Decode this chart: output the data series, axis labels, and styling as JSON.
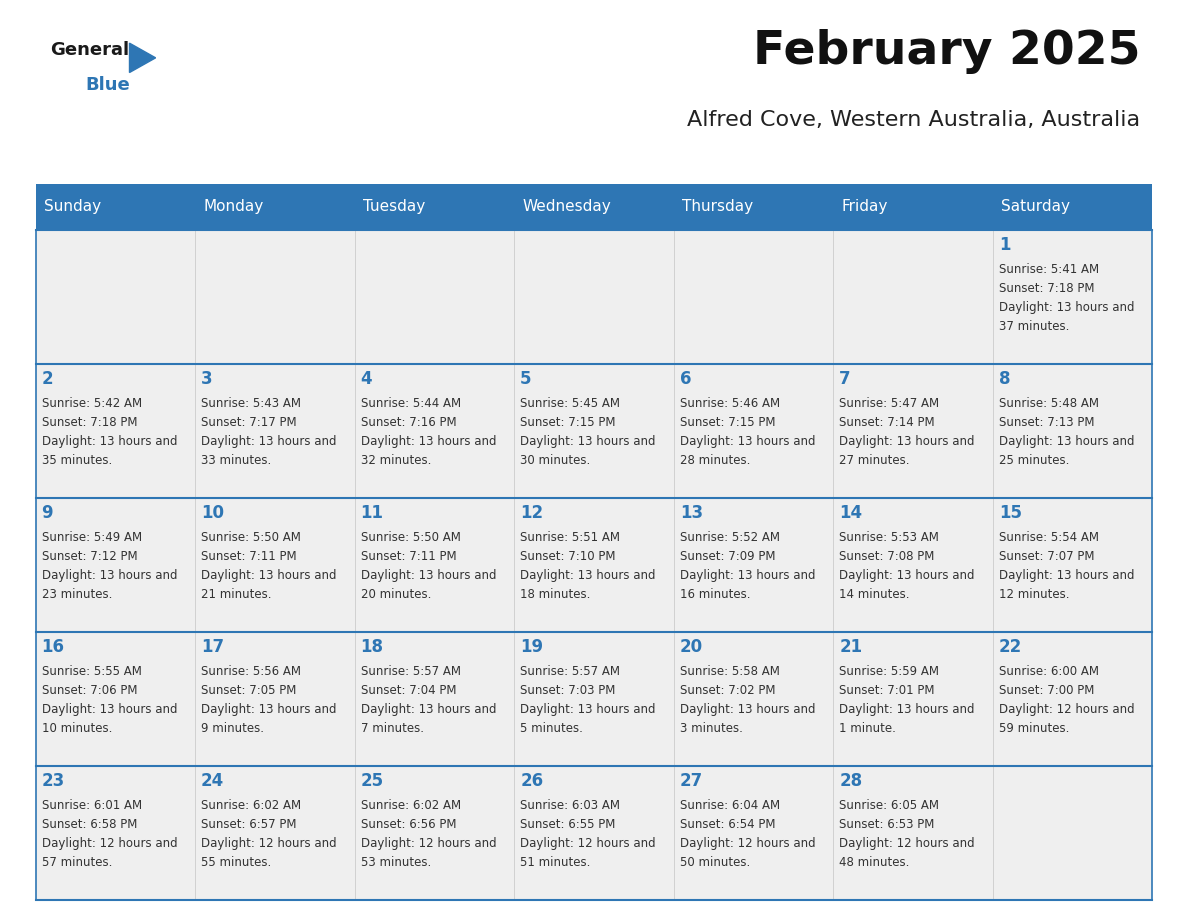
{
  "title": "February 2025",
  "subtitle": "Alfred Cove, Western Australia, Australia",
  "header_color": "#2E76B4",
  "header_text_color": "#FFFFFF",
  "day_names": [
    "Sunday",
    "Monday",
    "Tuesday",
    "Wednesday",
    "Thursday",
    "Friday",
    "Saturday"
  ],
  "bg_color": "#FFFFFF",
  "cell_bg": "#EFEFEF",
  "border_color": "#2E76B4",
  "day_num_color": "#2E76B4",
  "text_color": "#333333",
  "logo_general_color": "#1a1a1a",
  "logo_blue_color": "#2E76B4",
  "calendar": [
    [
      null,
      null,
      null,
      null,
      null,
      null,
      {
        "day": 1,
        "sunrise": "5:41 AM",
        "sunset": "7:18 PM",
        "daylight": "13 hours and 37 minutes"
      }
    ],
    [
      {
        "day": 2,
        "sunrise": "5:42 AM",
        "sunset": "7:18 PM",
        "daylight": "13 hours and 35 minutes"
      },
      {
        "day": 3,
        "sunrise": "5:43 AM",
        "sunset": "7:17 PM",
        "daylight": "13 hours and 33 minutes"
      },
      {
        "day": 4,
        "sunrise": "5:44 AM",
        "sunset": "7:16 PM",
        "daylight": "13 hours and 32 minutes"
      },
      {
        "day": 5,
        "sunrise": "5:45 AM",
        "sunset": "7:15 PM",
        "daylight": "13 hours and 30 minutes"
      },
      {
        "day": 6,
        "sunrise": "5:46 AM",
        "sunset": "7:15 PM",
        "daylight": "13 hours and 28 minutes"
      },
      {
        "day": 7,
        "sunrise": "5:47 AM",
        "sunset": "7:14 PM",
        "daylight": "13 hours and 27 minutes"
      },
      {
        "day": 8,
        "sunrise": "5:48 AM",
        "sunset": "7:13 PM",
        "daylight": "13 hours and 25 minutes"
      }
    ],
    [
      {
        "day": 9,
        "sunrise": "5:49 AM",
        "sunset": "7:12 PM",
        "daylight": "13 hours and 23 minutes"
      },
      {
        "day": 10,
        "sunrise": "5:50 AM",
        "sunset": "7:11 PM",
        "daylight": "13 hours and 21 minutes"
      },
      {
        "day": 11,
        "sunrise": "5:50 AM",
        "sunset": "7:11 PM",
        "daylight": "13 hours and 20 minutes"
      },
      {
        "day": 12,
        "sunrise": "5:51 AM",
        "sunset": "7:10 PM",
        "daylight": "13 hours and 18 minutes"
      },
      {
        "day": 13,
        "sunrise": "5:52 AM",
        "sunset": "7:09 PM",
        "daylight": "13 hours and 16 minutes"
      },
      {
        "day": 14,
        "sunrise": "5:53 AM",
        "sunset": "7:08 PM",
        "daylight": "13 hours and 14 minutes"
      },
      {
        "day": 15,
        "sunrise": "5:54 AM",
        "sunset": "7:07 PM",
        "daylight": "13 hours and 12 minutes"
      }
    ],
    [
      {
        "day": 16,
        "sunrise": "5:55 AM",
        "sunset": "7:06 PM",
        "daylight": "13 hours and 10 minutes"
      },
      {
        "day": 17,
        "sunrise": "5:56 AM",
        "sunset": "7:05 PM",
        "daylight": "13 hours and 9 minutes"
      },
      {
        "day": 18,
        "sunrise": "5:57 AM",
        "sunset": "7:04 PM",
        "daylight": "13 hours and 7 minutes"
      },
      {
        "day": 19,
        "sunrise": "5:57 AM",
        "sunset": "7:03 PM",
        "daylight": "13 hours and 5 minutes"
      },
      {
        "day": 20,
        "sunrise": "5:58 AM",
        "sunset": "7:02 PM",
        "daylight": "13 hours and 3 minutes"
      },
      {
        "day": 21,
        "sunrise": "5:59 AM",
        "sunset": "7:01 PM",
        "daylight": "13 hours and 1 minute"
      },
      {
        "day": 22,
        "sunrise": "6:00 AM",
        "sunset": "7:00 PM",
        "daylight": "12 hours and 59 minutes"
      }
    ],
    [
      {
        "day": 23,
        "sunrise": "6:01 AM",
        "sunset": "6:58 PM",
        "daylight": "12 hours and 57 minutes"
      },
      {
        "day": 24,
        "sunrise": "6:02 AM",
        "sunset": "6:57 PM",
        "daylight": "12 hours and 55 minutes"
      },
      {
        "day": 25,
        "sunrise": "6:02 AM",
        "sunset": "6:56 PM",
        "daylight": "12 hours and 53 minutes"
      },
      {
        "day": 26,
        "sunrise": "6:03 AM",
        "sunset": "6:55 PM",
        "daylight": "12 hours and 51 minutes"
      },
      {
        "day": 27,
        "sunrise": "6:04 AM",
        "sunset": "6:54 PM",
        "daylight": "12 hours and 50 minutes"
      },
      {
        "day": 28,
        "sunrise": "6:05 AM",
        "sunset": "6:53 PM",
        "daylight": "12 hours and 48 minutes"
      },
      null
    ]
  ]
}
